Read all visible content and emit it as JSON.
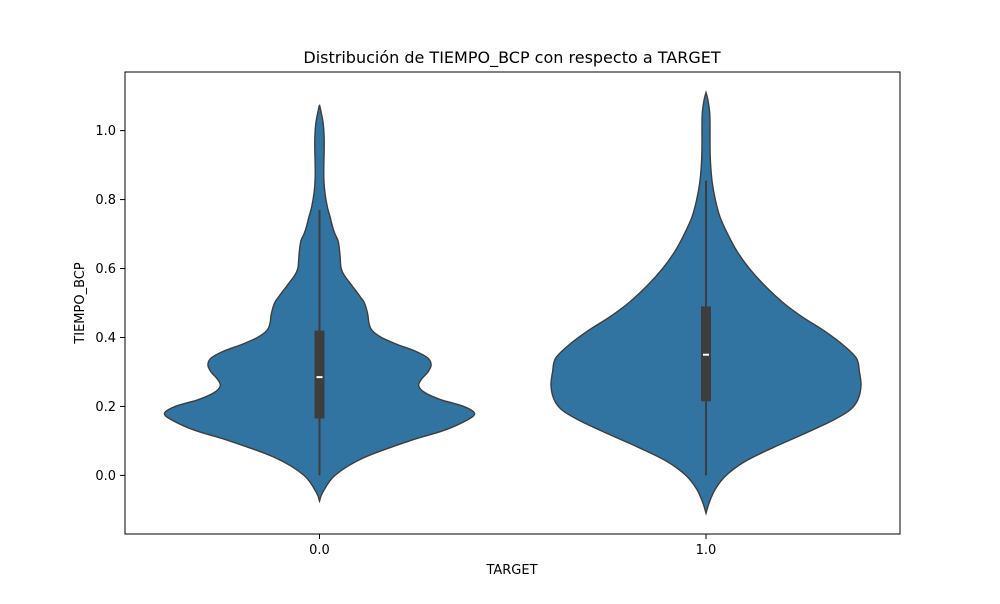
{
  "chart_data": {
    "type": "violin",
    "title": "Distribución de TIEMPO_BCP con respecto a TARGET",
    "xlabel": "TARGET",
    "ylabel": "TIEMPO_BCP",
    "categories": [
      "0.0",
      "1.0"
    ],
    "y_ticks": [
      "0.0",
      "0.2",
      "0.4",
      "0.6",
      "0.8",
      "1.0"
    ],
    "ylim": [
      -0.17,
      1.17
    ],
    "grid": false,
    "legend": "none",
    "colors": {
      "fill": "#3274a1",
      "edge": "#3d3d3d",
      "box": "#3d3d3d",
      "median": "#ffffff"
    },
    "violins": [
      {
        "category": "0.0",
        "density": [
          [
            -0.075,
            0.0
          ],
          [
            -0.05,
            0.02
          ],
          [
            0.0,
            0.1
          ],
          [
            0.05,
            0.28
          ],
          [
            0.1,
            0.58
          ],
          [
            0.13,
            0.8
          ],
          [
            0.16,
            0.95
          ],
          [
            0.18,
            1.0
          ],
          [
            0.2,
            0.93
          ],
          [
            0.22,
            0.78
          ],
          [
            0.24,
            0.68
          ],
          [
            0.26,
            0.64
          ],
          [
            0.28,
            0.66
          ],
          [
            0.3,
            0.7
          ],
          [
            0.32,
            0.72
          ],
          [
            0.34,
            0.7
          ],
          [
            0.36,
            0.62
          ],
          [
            0.38,
            0.5
          ],
          [
            0.4,
            0.4
          ],
          [
            0.42,
            0.34
          ],
          [
            0.44,
            0.32
          ],
          [
            0.47,
            0.31
          ],
          [
            0.5,
            0.29
          ],
          [
            0.52,
            0.26
          ],
          [
            0.55,
            0.21
          ],
          [
            0.58,
            0.16
          ],
          [
            0.6,
            0.14
          ],
          [
            0.62,
            0.135
          ],
          [
            0.65,
            0.13
          ],
          [
            0.68,
            0.12
          ],
          [
            0.7,
            0.1
          ],
          [
            0.72,
            0.085
          ],
          [
            0.75,
            0.068
          ],
          [
            0.78,
            0.05
          ],
          [
            0.82,
            0.035
          ],
          [
            0.86,
            0.028
          ],
          [
            0.9,
            0.028
          ],
          [
            0.94,
            0.03
          ],
          [
            0.98,
            0.03
          ],
          [
            1.02,
            0.024
          ],
          [
            1.05,
            0.012
          ],
          [
            1.075,
            0.0
          ]
        ],
        "box": {
          "whisker_low": 0.0,
          "q1": 0.165,
          "median": 0.285,
          "q3": 0.42,
          "whisker_high": 0.77
        }
      },
      {
        "category": "1.0",
        "density": [
          [
            -0.11,
            0.0
          ],
          [
            -0.08,
            0.02
          ],
          [
            -0.04,
            0.06
          ],
          [
            0.0,
            0.13
          ],
          [
            0.04,
            0.25
          ],
          [
            0.08,
            0.43
          ],
          [
            0.12,
            0.63
          ],
          [
            0.16,
            0.82
          ],
          [
            0.19,
            0.93
          ],
          [
            0.22,
            0.98
          ],
          [
            0.26,
            1.0
          ],
          [
            0.3,
            0.99
          ],
          [
            0.34,
            0.97
          ],
          [
            0.38,
            0.88
          ],
          [
            0.42,
            0.76
          ],
          [
            0.46,
            0.62
          ],
          [
            0.5,
            0.5
          ],
          [
            0.55,
            0.38
          ],
          [
            0.6,
            0.28
          ],
          [
            0.65,
            0.2
          ],
          [
            0.7,
            0.14
          ],
          [
            0.75,
            0.09
          ],
          [
            0.8,
            0.06
          ],
          [
            0.85,
            0.04
          ],
          [
            0.9,
            0.03
          ],
          [
            0.95,
            0.026
          ],
          [
            1.0,
            0.026
          ],
          [
            1.05,
            0.024
          ],
          [
            1.09,
            0.012
          ],
          [
            1.11,
            0.0
          ]
        ],
        "box": {
          "whisker_low": 0.0,
          "q1": 0.215,
          "median": 0.35,
          "q3": 0.49,
          "whisker_high": 0.855
        }
      }
    ]
  }
}
